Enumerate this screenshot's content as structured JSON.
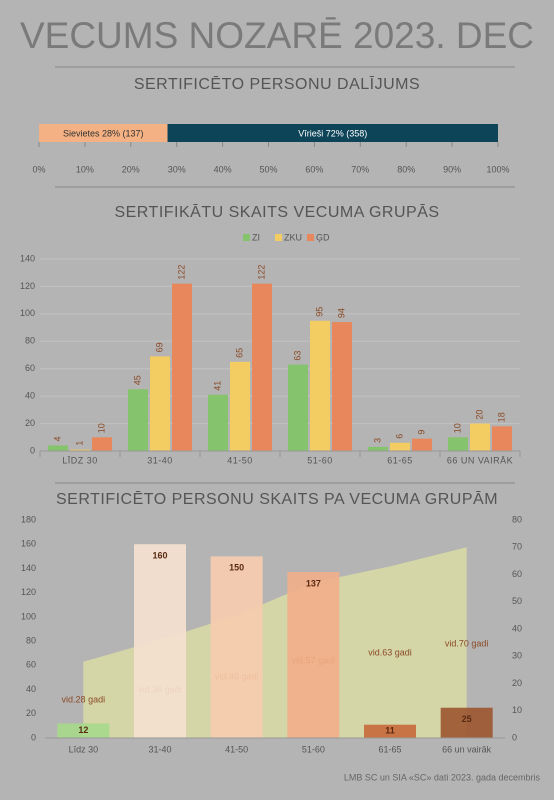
{
  "title": "VECUMS NOZARĒ 2023. DEC",
  "source": "LMB SC un SIA «SC» dati 2023. gada decembris",
  "chart_data": [
    {
      "type": "stacked-hbar",
      "title": "SERTIFICĒTO PERSONU DALĪJUMS",
      "series": [
        {
          "color": "#f4b183",
          "values": [
            28
          ],
          "value_labels": [
            "Sievietes 28% (137)"
          ]
        },
        {
          "color": "#0d4458",
          "values": [
            72
          ],
          "value_labels": [
            "Vīrieši 72% (358)"
          ]
        }
      ],
      "xlim": [
        0,
        100
      ],
      "xticks": [
        {
          "value": 0,
          "label": "0%"
        },
        {
          "value": 10,
          "label": "10%"
        },
        {
          "value": 20,
          "label": "20%"
        },
        {
          "value": 30,
          "label": "30%"
        },
        {
          "value": 40,
          "label": "40%"
        },
        {
          "value": 50,
          "label": "50%"
        },
        {
          "value": 60,
          "label": "60%"
        },
        {
          "value": 70,
          "label": "70%"
        },
        {
          "value": 80,
          "label": "80%"
        },
        {
          "value": 90,
          "label": "90%"
        },
        {
          "value": 100,
          "label": "100%"
        }
      ]
    },
    {
      "type": "bar",
      "title": "SERTIFIKĀTU SKAITS VECUMA GRUPĀS",
      "categories": [
        "LĪDZ 30",
        "31-40",
        "41-50",
        "51-60",
        "61-65",
        "66 UN VAIRĀK"
      ],
      "series": [
        {
          "name": "ZI",
          "color": "#85c46c",
          "values": [
            4,
            45,
            41,
            63,
            3,
            10
          ]
        },
        {
          "name": "ZKU",
          "color": "#f3cd62",
          "values": [
            1,
            69,
            65,
            95,
            6,
            20
          ]
        },
        {
          "name": "ĢD",
          "color": "#e8875c",
          "values": [
            10,
            122,
            122,
            94,
            9,
            18
          ]
        }
      ],
      "ylim": [
        0,
        140
      ],
      "yticks": [
        0,
        20,
        40,
        60,
        80,
        100,
        120,
        140
      ],
      "grid": true,
      "legend": "top"
    },
    {
      "type": "bar-area",
      "title": "SERTIFICĒTO PERSONU SKAITS PA VECUMA GRUPĀM",
      "categories": [
        "Līdz 30",
        "31-40",
        "41-50",
        "51-60",
        "61-65",
        "66 un vairāk"
      ],
      "series": [
        {
          "type": "bar",
          "colors": [
            "#a6d98a",
            "#f6e1cf",
            "#f7ccae",
            "#f2ae88",
            "#c8693a",
            "#9c5530"
          ],
          "values": [
            12,
            160,
            150,
            137,
            11,
            25
          ]
        },
        {
          "type": "area",
          "axis": "y2",
          "color": "#dfe2a4",
          "values": [
            28,
            36,
            45,
            57,
            63,
            70
          ],
          "value_labels": [
            "vid.28 gadi",
            "vid.36 gadi",
            "vid.45 gadi",
            "vid.57 gadi",
            "vid.63 gadi",
            "vid.70 gadi"
          ]
        }
      ],
      "ylim": [
        0,
        180
      ],
      "yticks": [
        0,
        20,
        40,
        60,
        80,
        100,
        120,
        140,
        160,
        180
      ],
      "y2lim": [
        0,
        80
      ],
      "y2ticks": [
        0,
        10,
        20,
        30,
        40,
        50,
        60,
        70,
        80
      ]
    }
  ]
}
